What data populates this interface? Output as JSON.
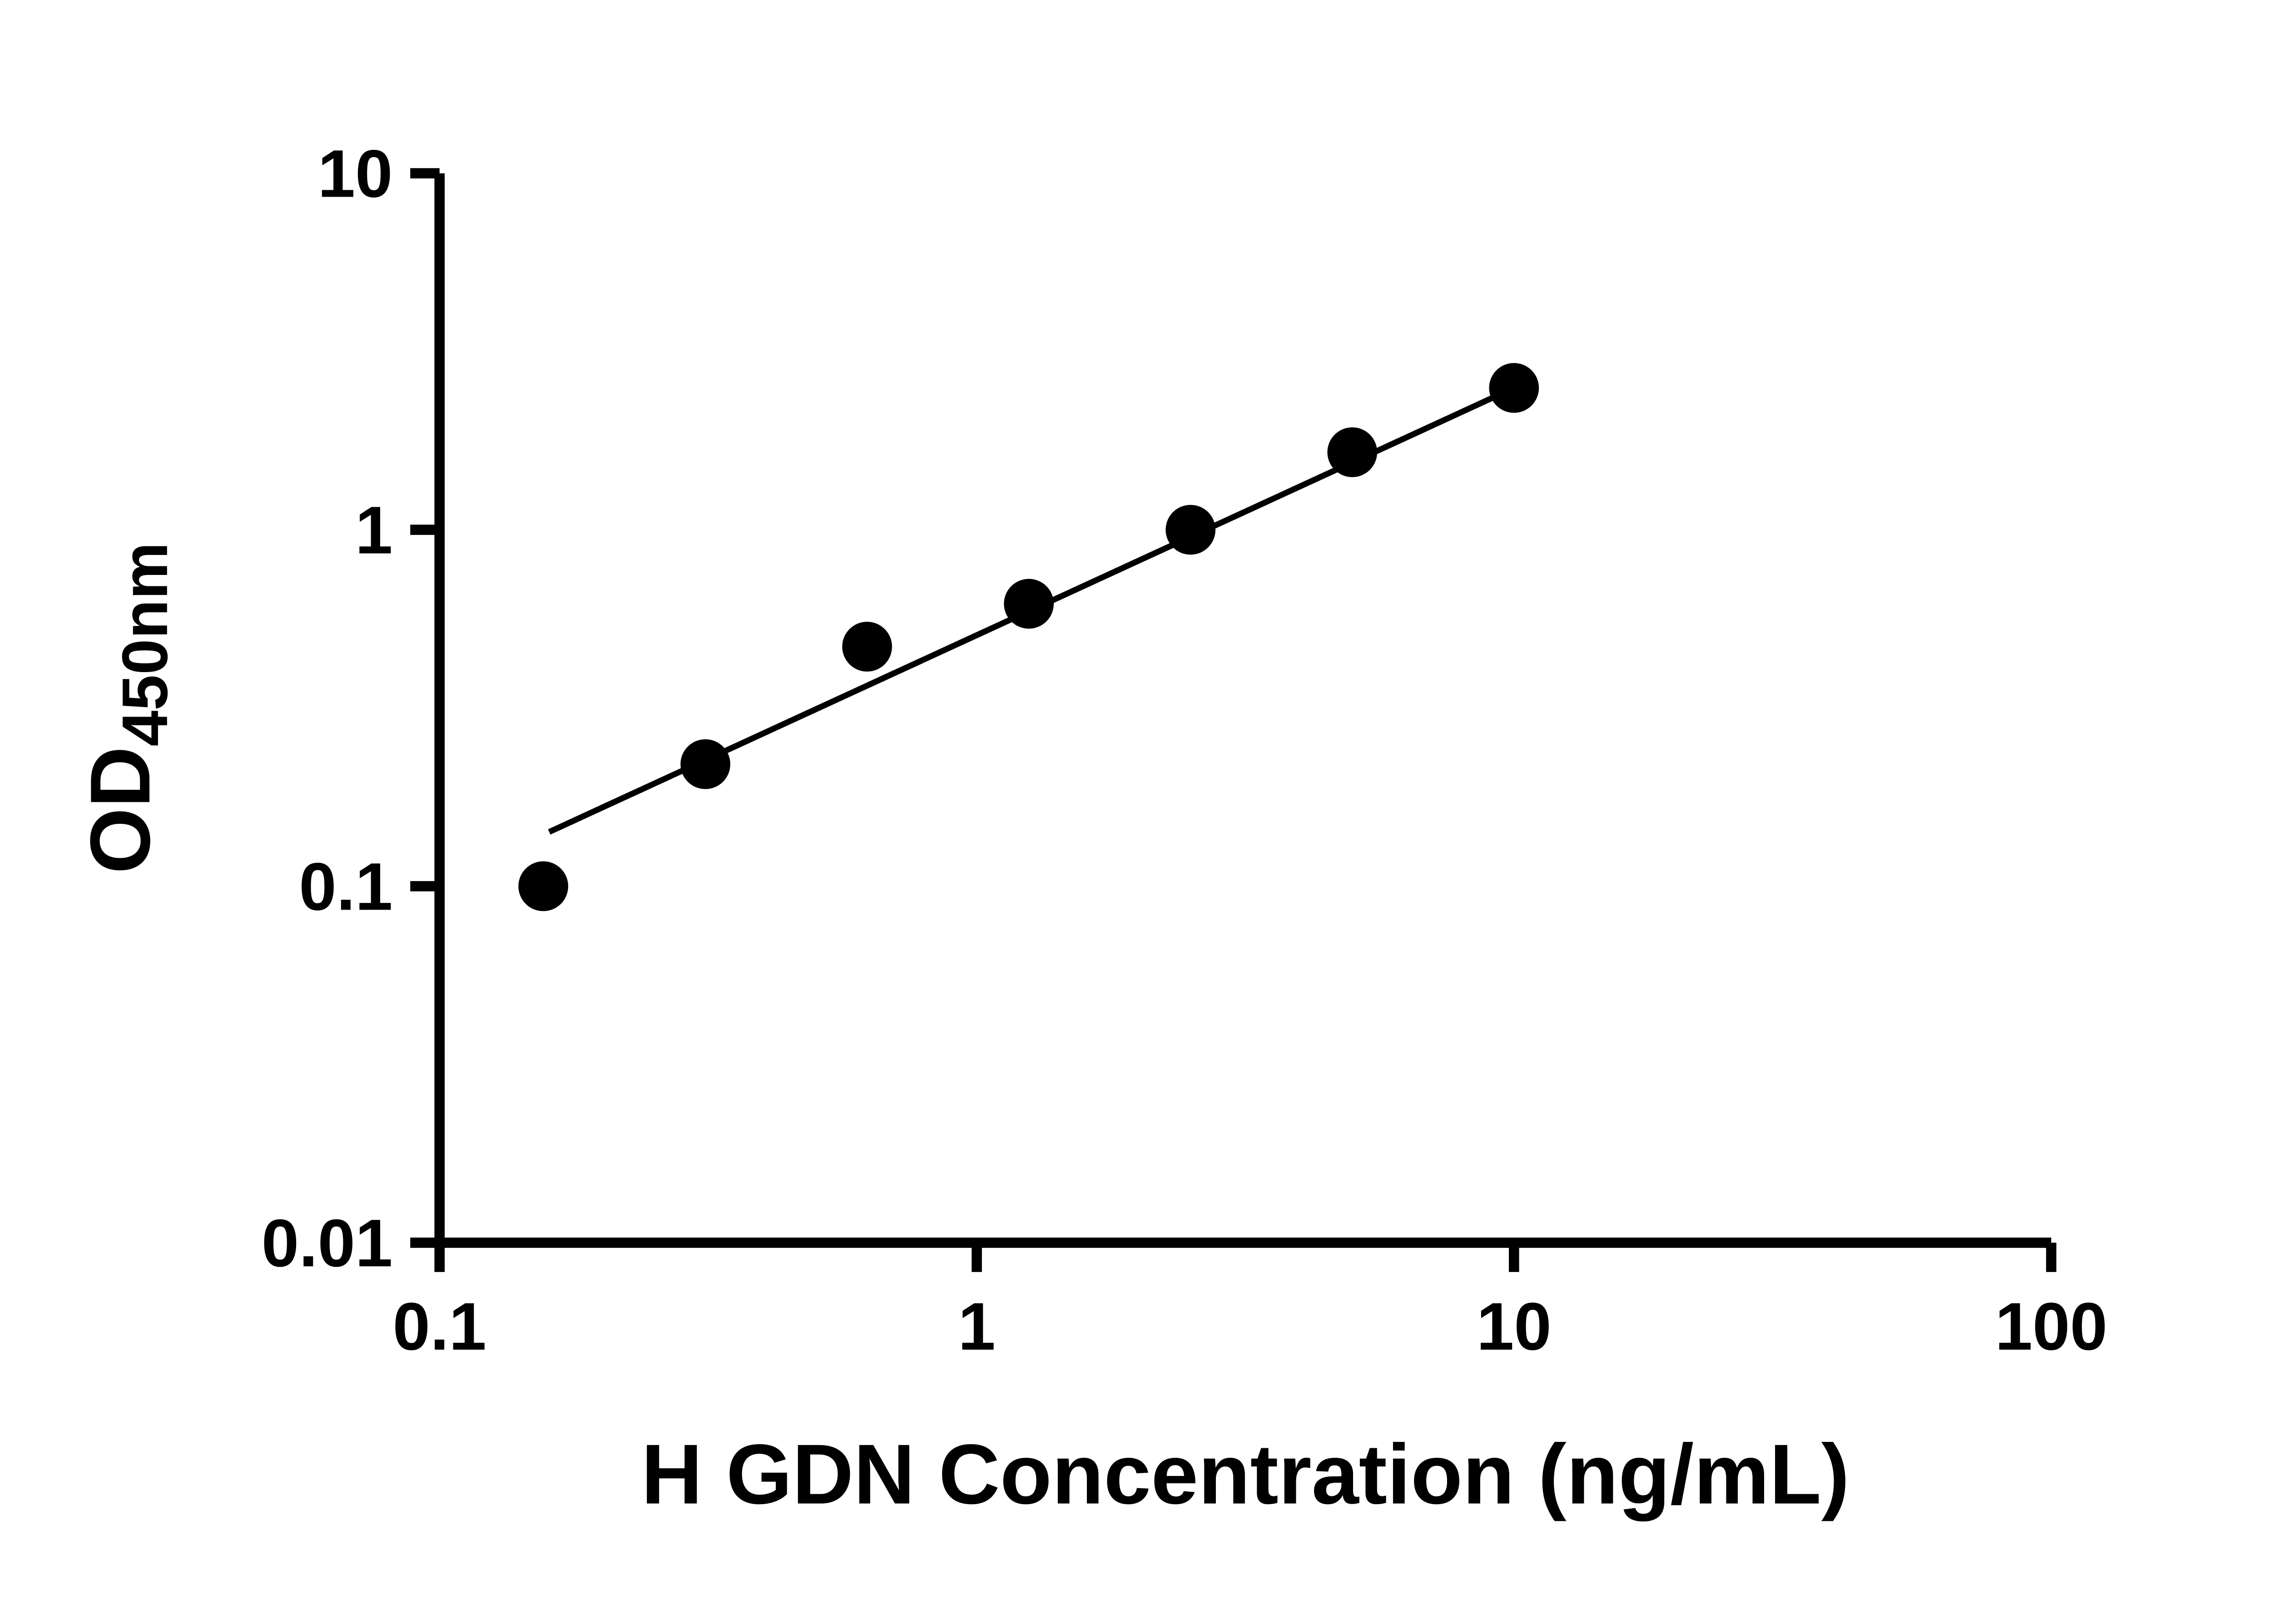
{
  "chart_data": {
    "type": "scatter",
    "title": "",
    "xlabel": "H GDN Concentration (ng/mL)",
    "ylabel_main": "OD",
    "ylabel_sub": "450nm",
    "x_scale": "log",
    "y_scale": "log",
    "xlim": [
      0.1,
      100
    ],
    "ylim": [
      0.01,
      10
    ],
    "grid": false,
    "legend": "none",
    "x_ticks": [
      {
        "value": 0.1,
        "label": "0.1"
      },
      {
        "value": 1,
        "label": "1"
      },
      {
        "value": 10,
        "label": "10"
      },
      {
        "value": 100,
        "label": "100"
      }
    ],
    "y_ticks": [
      {
        "value": 0.01,
        "label": "0.01"
      },
      {
        "value": 0.1,
        "label": "0.1"
      },
      {
        "value": 1,
        "label": "1"
      },
      {
        "value": 10,
        "label": "10"
      }
    ],
    "points": [
      {
        "x": 0.156,
        "y": 0.1
      },
      {
        "x": 0.3125,
        "y": 0.22
      },
      {
        "x": 0.625,
        "y": 0.47
      },
      {
        "x": 1.25,
        "y": 0.62
      },
      {
        "x": 2.5,
        "y": 1.0
      },
      {
        "x": 5,
        "y": 1.65
      },
      {
        "x": 10,
        "y": 2.5
      }
    ],
    "trend_line": {
      "x1": 0.16,
      "y1": 0.142,
      "x2": 10,
      "y2": 2.5
    },
    "marker_color": "#000000",
    "line_color": "#000000",
    "axis_color": "#000000",
    "background_color": "#ffffff"
  }
}
